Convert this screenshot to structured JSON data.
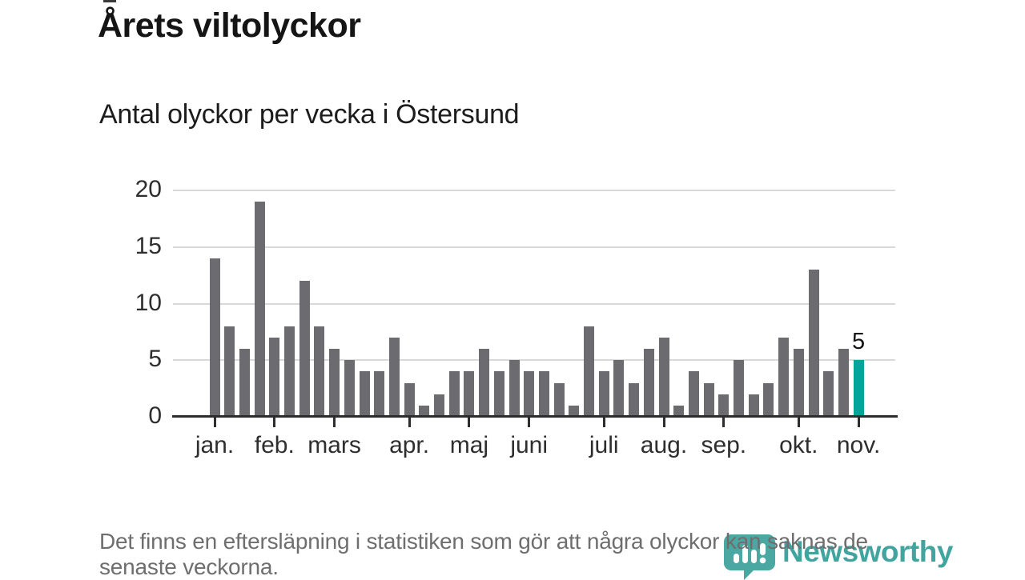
{
  "header": {
    "title": "Årets viltolyckor",
    "subtitle": "Antal olyckor per vecka i Östersund"
  },
  "footer": {
    "note": "Det finns en eftersläpning i statistiken som gör att några olyckor kan saknas de senaste veckorna.",
    "note_lines": [
      "Det finns en eftersläpning i statistiken som gör att några olyckor kan saknas de",
      "senaste veckorna."
    ],
    "brand": "Newsworthy"
  },
  "colors": {
    "bar": "#6b6b70",
    "highlight": "#00a49a",
    "grid": "#d9d9d9",
    "axis": "#2d2d2d",
    "brand": "#42a49f",
    "footnote_text": "#6e6e6e"
  },
  "chart_data": {
    "type": "bar",
    "title": "Årets viltolyckor",
    "subtitle": "Antal olyckor per vecka i Östersund",
    "values": [
      14,
      8,
      6,
      19,
      7,
      8,
      12,
      8,
      6,
      5,
      4,
      4,
      7,
      3,
      1,
      2,
      4,
      4,
      6,
      4,
      5,
      4,
      4,
      3,
      1,
      8,
      4,
      5,
      3,
      6,
      7,
      1,
      4,
      3,
      2,
      5,
      2,
      3,
      7,
      6,
      13,
      4,
      6,
      5
    ],
    "highlight_index": 43,
    "highlight_label": "5",
    "y_ticks": [
      0,
      5,
      10,
      15,
      20
    ],
    "ylim": [
      0,
      20
    ],
    "grid": true,
    "legend": false,
    "months": [
      {
        "label": "jan.",
        "week_index": 0
      },
      {
        "label": "feb.",
        "week_index": 4
      },
      {
        "label": "mars",
        "week_index": 8
      },
      {
        "label": "apr.",
        "week_index": 13
      },
      {
        "label": "maj",
        "week_index": 17
      },
      {
        "label": "juni",
        "week_index": 21
      },
      {
        "label": "juli",
        "week_index": 26
      },
      {
        "label": "aug.",
        "week_index": 30
      },
      {
        "label": "sep.",
        "week_index": 34
      },
      {
        "label": "okt.",
        "week_index": 39
      },
      {
        "label": "nov.",
        "week_index": 43
      }
    ]
  }
}
